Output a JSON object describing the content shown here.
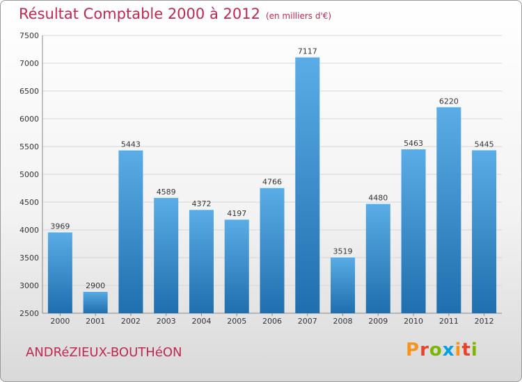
{
  "header": {
    "title": "Résultat Comptable 2000 à 2012",
    "subtitle": "(en milliers d'€)"
  },
  "footer": {
    "place": "ANDRéZIEUX-BOUTHéON",
    "logo_letters": [
      "P",
      "r",
      "o",
      "x",
      "i",
      "t",
      "i"
    ],
    "logo_colors": [
      "#f7941d",
      "#e8412c",
      "#7ab800",
      "#00a0e3",
      "#f7941d",
      "#e8412c",
      "#7ab800"
    ]
  },
  "colors": {
    "bar_light": "#5aade6",
    "bar_dark": "#1f6eae",
    "grid": "#d6d6d6",
    "axis_text": "#333333",
    "title": "#c1274f"
  },
  "chart_data": {
    "type": "bar",
    "title": "Résultat Comptable 2000 à 2012",
    "subtitle": "(en milliers d'€)",
    "xlabel": "",
    "ylabel": "",
    "categories": [
      "2000",
      "2001",
      "2002",
      "2003",
      "2004",
      "2005",
      "2006",
      "2007",
      "2008",
      "2009",
      "2010",
      "2011",
      "2012"
    ],
    "values": [
      3969,
      2900,
      5443,
      4589,
      4372,
      4197,
      4766,
      7117,
      3519,
      4480,
      5463,
      6220,
      5445
    ],
    "ylim": [
      2500,
      7500
    ],
    "yticks": [
      2500,
      3000,
      3500,
      4000,
      4500,
      5000,
      5500,
      6000,
      6500,
      7000,
      7500
    ],
    "grid": true
  }
}
